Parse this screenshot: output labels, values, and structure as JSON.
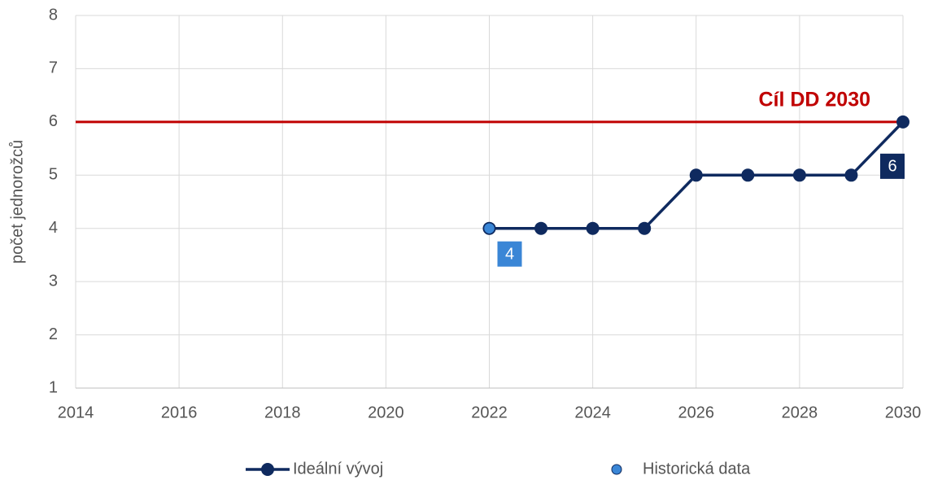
{
  "chart_data": {
    "type": "line",
    "y_label": "počet jednorožců",
    "xlim": [
      2014,
      2030
    ],
    "xticks": [
      2014,
      2016,
      2018,
      2020,
      2022,
      2024,
      2026,
      2028,
      2030
    ],
    "ylim": [
      1,
      8
    ],
    "yticks": [
      1,
      2,
      3,
      4,
      5,
      6,
      7,
      8
    ],
    "grid": true,
    "legend": "bottom",
    "series": [
      {
        "name": "Ideální vývoj",
        "color": "#0f2a5f",
        "x": [
          2022,
          2023,
          2024,
          2025,
          2026,
          2027,
          2028,
          2029,
          2030
        ],
        "values": [
          4,
          4,
          4,
          4,
          5,
          5,
          5,
          5,
          6
        ],
        "line": true,
        "labels": "last"
      },
      {
        "name": "Historická data",
        "color": "#3a86d6",
        "x": [
          2022
        ],
        "values": [
          4
        ],
        "line": false,
        "labels": "all"
      }
    ],
    "reference_lines": [
      {
        "value": 6,
        "label": "Cíl DD 2030",
        "color": "#c00000"
      }
    ]
  }
}
